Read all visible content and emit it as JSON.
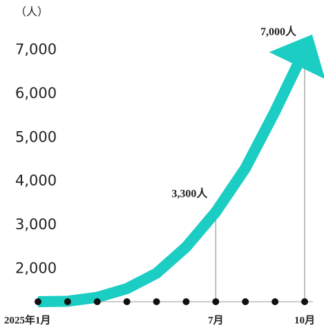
{
  "chart_data": {
    "type": "line",
    "y_label": "（人）",
    "categories": [
      "2025年1月",
      null,
      null,
      null,
      null,
      null,
      "7月",
      null,
      null,
      "10月"
    ],
    "values": [
      1250,
      1260,
      1350,
      1550,
      1900,
      2500,
      3300,
      4300,
      5600,
      7000
    ],
    "value_labels": [
      null,
      null,
      null,
      null,
      null,
      null,
      "3,300人",
      null,
      null,
      "7,000人"
    ],
    "color": "#1ccdc4",
    "ylim": [
      1250,
      7750
    ],
    "yticks": [
      {
        "value": 2000,
        "label": "2,000"
      },
      {
        "value": 3000,
        "label": "3,000"
      },
      {
        "value": 4000,
        "label": "4,000"
      },
      {
        "value": 5000,
        "label": "5,000"
      },
      {
        "value": 6000,
        "label": "6,000"
      },
      {
        "value": 7000,
        "label": "7,000"
      }
    ]
  }
}
